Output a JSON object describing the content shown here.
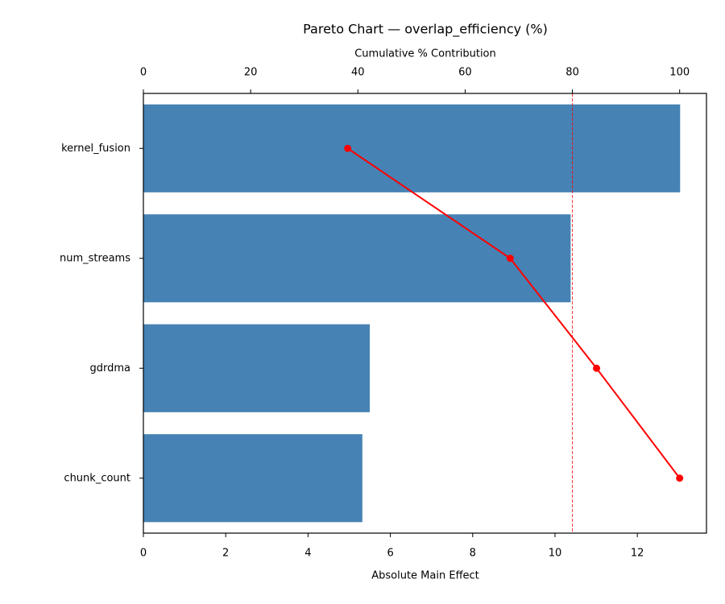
{
  "chart_data": {
    "type": "pareto",
    "title": "Pareto Chart — overlap_efficiency (%)",
    "xlabel": "Absolute Main Effect",
    "x2label": "Cumulative % Contribution",
    "categories": [
      "kernel_fusion",
      "num_streams",
      "gdrdma",
      "chunk_count"
    ],
    "series": [
      {
        "type": "bar",
        "color": "#4682b4",
        "values": [
          13.04,
          10.38,
          5.5,
          5.32
        ]
      },
      {
        "type": "line",
        "axis": "x2",
        "color": "#ff0000",
        "values": [
          38.1,
          68.4,
          84.5,
          100
        ]
      }
    ],
    "xlim": [
      0,
      13.68
    ],
    "xticks": [
      0,
      2,
      4,
      6,
      8,
      10,
      12
    ],
    "x2lim": [
      0,
      105
    ],
    "x2ticks": [
      0,
      20,
      40,
      60,
      80,
      100
    ],
    "reference_line": {
      "axis": "x2",
      "value": 80,
      "color": "#ff0000"
    }
  }
}
